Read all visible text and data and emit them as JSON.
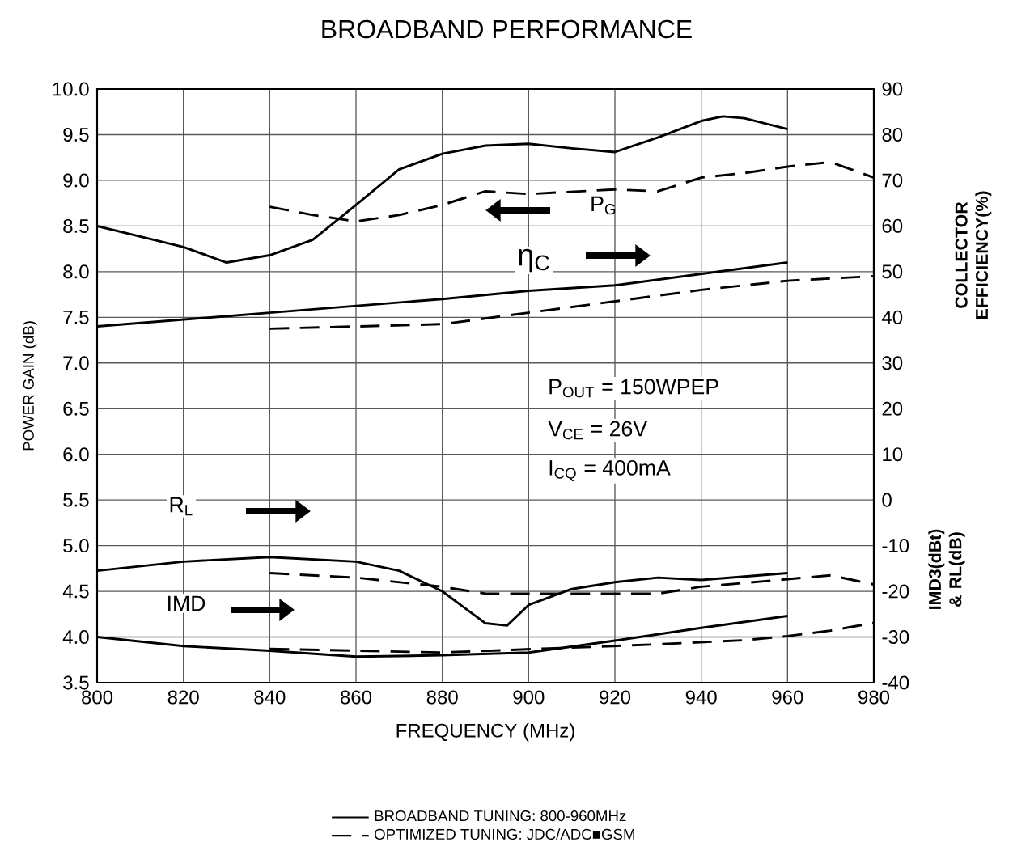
{
  "chart_data": {
    "type": "line",
    "title": "BROADBAND PERFORMANCE",
    "xlabel": "FREQUENCY (MHz)",
    "ylabel": "POWER GAIN (dB)",
    "y2label": "COLLECTOR EFFICIENCY(%)",
    "xlim": [
      800,
      980
    ],
    "xticks": [
      800,
      820,
      840,
      860,
      880,
      900,
      920,
      940,
      960,
      980
    ],
    "ylim": [
      3.5,
      10
    ],
    "yticks": [
      3.5,
      {
        "value": 4,
        "label": "4.0"
      },
      4.5,
      {
        "value": 5,
        "label": "5.0"
      },
      5.5,
      {
        "value": 6,
        "label": "6.0"
      },
      6.5,
      {
        "value": 7,
        "label": "7.0"
      },
      7.5,
      {
        "value": 8,
        "label": "8.0"
      },
      8.5,
      {
        "value": 9,
        "label": "9.0"
      },
      9.5,
      {
        "value": 10,
        "label": "10.0"
      }
    ],
    "y2lim": [
      -40,
      90
    ],
    "y2ticks": [
      -40,
      -30,
      -20,
      -10,
      0,
      10,
      20,
      30,
      40,
      50,
      60,
      70,
      80,
      90
    ],
    "grid": true,
    "legend": "bottom",
    "series": [
      {
        "name": "BROADBAND TUNING: 800-960MHz",
        "color": "#000000",
        "line_style": "solid",
        "x": [
          800,
          820,
          830,
          840,
          850,
          860,
          870,
          880,
          890,
          900,
          910,
          920,
          930,
          940,
          945,
          950,
          960
        ],
        "values": [
          8.5,
          8.27,
          8.1,
          8.18,
          8.35,
          8.73,
          9.12,
          9.29,
          9.38,
          9.4,
          9.35,
          9.31,
          9.47,
          9.65,
          9.7,
          9.68,
          9.56
        ]
      },
      {
        "name": "OPTIMIZED TUNING: JDC/ADC■GSM",
        "color": "#000000",
        "line_style": "dashed",
        "x": [
          840,
          850,
          860,
          870,
          880,
          890,
          900,
          920,
          930,
          940,
          950,
          960,
          970,
          980
        ],
        "values": [
          8.71,
          8.62,
          8.55,
          8.62,
          8.73,
          8.88,
          8.85,
          8.9,
          8.88,
          9.03,
          9.08,
          9.15,
          9.2,
          9.03
        ]
      },
      {
        "color": "#000000",
        "line_style": "solid",
        "axis": "y2",
        "x": [
          800,
          840,
          880,
          900,
          920,
          940,
          960
        ],
        "values": [
          38,
          41,
          44,
          45.8,
          47,
          49.5,
          52
        ]
      },
      {
        "color": "#000000",
        "line_style": "dashed",
        "axis": "y2",
        "x": [
          840,
          860,
          880,
          900,
          920,
          940,
          960,
          980
        ],
        "values": [
          37.5,
          38,
          38.5,
          41,
          43.5,
          46,
          48,
          49
        ]
      },
      {
        "color": "#000000",
        "line_style": "solid",
        "axis": "y2",
        "x": [
          800,
          820,
          840,
          860,
          870,
          880,
          885,
          890,
          895,
          900,
          910,
          920,
          930,
          940,
          960
        ],
        "values": [
          -15.5,
          -13.5,
          -12.5,
          -13.5,
          -15.5,
          -20,
          -23.5,
          -27,
          -27.5,
          -23,
          -19.5,
          -18,
          -17,
          -17.5,
          -16
        ]
      },
      {
        "color": "#000000",
        "line_style": "dashed",
        "axis": "y2",
        "x": [
          840,
          860,
          880,
          890,
          910,
          930,
          940,
          970,
          980
        ],
        "values": [
          -16,
          -17,
          -19,
          -20.5,
          -20.5,
          -20.5,
          -19,
          -16.5,
          -18.5
        ]
      },
      {
        "color": "#000000",
        "line_style": "solid",
        "axis": "y2",
        "x": [
          800,
          820,
          840,
          860,
          880,
          900,
          920,
          940,
          960
        ],
        "values": [
          -30,
          -32,
          -33,
          -34.3,
          -34,
          -33.4,
          -30.8,
          -28,
          -25.4
        ]
      },
      {
        "color": "#000000",
        "line_style": "dashed",
        "axis": "y2",
        "x": [
          840,
          860,
          880,
          930,
          950,
          960,
          970,
          980
        ],
        "values": [
          -32.6,
          -33,
          -33.4,
          -31.6,
          -30.7,
          -29.8,
          -28.6,
          -26.9
        ]
      }
    ],
    "annotations": [
      "P$_{G}$",
      "η$_{C}$",
      "R$_{L}$",
      "IMD",
      "P$_{OUT}$ = 150WPEP",
      "V$_{CE}$ = 26V",
      "I$_{CQ}$ = 400mA",
      "IMD3(dBt) & RL(dB)"
    ]
  }
}
